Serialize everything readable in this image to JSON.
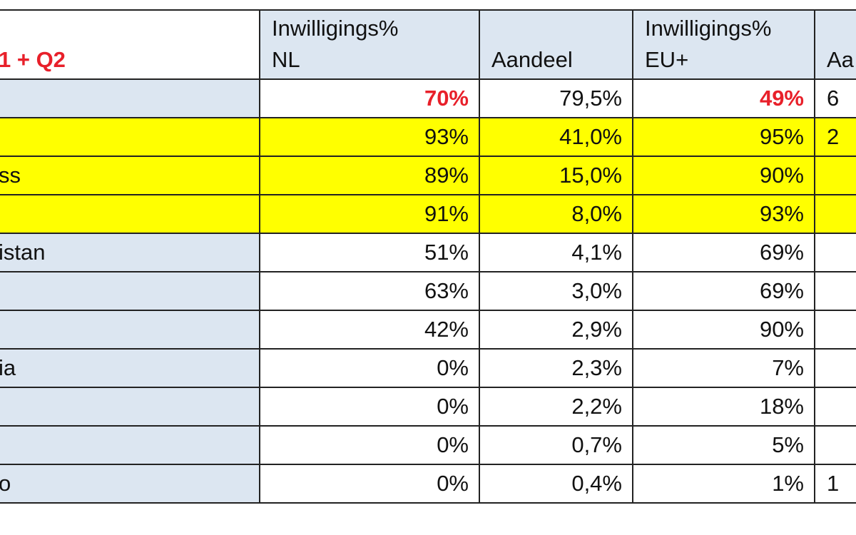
{
  "table": {
    "header": [
      [
        "1 + Q2"
      ],
      [
        "Inwilligings%",
        "NL"
      ],
      [
        "Aandeel"
      ],
      [
        "Inwilligings%",
        "EU+"
      ],
      [
        "Aa"
      ]
    ],
    "rows": [
      [
        null,
        "70%",
        "79,5%",
        "49%",
        "6"
      ],
      [
        null,
        "93%",
        "41,0%",
        "95%",
        "2"
      ],
      [
        "ss",
        "89%",
        "15,0%",
        "90%",
        null
      ],
      [
        null,
        "91%",
        "8,0%",
        "93%",
        null
      ],
      [
        "istan",
        "51%",
        "4,1%",
        "69%",
        null
      ],
      [
        null,
        "63%",
        "3,0%",
        "69%",
        null
      ],
      [
        null,
        "42%",
        "2,9%",
        "90%",
        null
      ],
      [
        "ia",
        "0%",
        "2,3%",
        "7%",
        null
      ],
      [
        null,
        "0%",
        "2,2%",
        "18%",
        null
      ],
      [
        null,
        "0%",
        "0,7%",
        "5%",
        null
      ],
      [
        "o",
        "0%",
        "0,4%",
        "1%",
        "1"
      ]
    ]
  }
}
